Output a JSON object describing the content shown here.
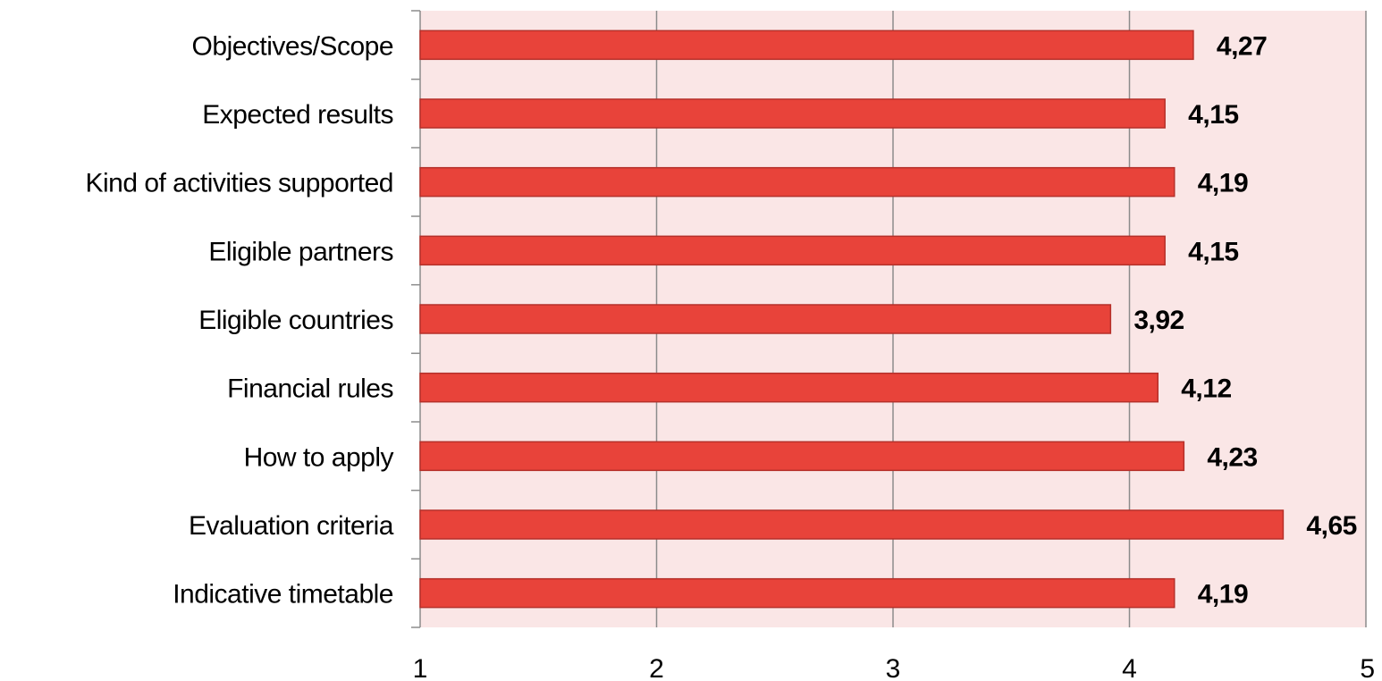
{
  "chart_data": {
    "type": "bar",
    "orientation": "horizontal",
    "categories": [
      "Objectives/Scope",
      "Expected results",
      "Kind of activities supported",
      "Eligible partners",
      "Eligible countries",
      "Financial rules",
      "How to apply",
      "Evaluation criteria",
      "Indicative timetable"
    ],
    "values": [
      4.27,
      4.15,
      4.19,
      4.15,
      3.92,
      4.12,
      4.23,
      4.65,
      4.19
    ],
    "data_labels": [
      "4,27",
      "4,15",
      "4,19",
      "4,15",
      "3,92",
      "4,12",
      "4,23",
      "4,65",
      "4,19"
    ],
    "x_ticks": [
      "1",
      "2",
      "3",
      "4",
      "5"
    ],
    "xlim": [
      1,
      5
    ],
    "title": "",
    "xlabel": "",
    "ylabel": "",
    "grid": "vertical",
    "legend": "none",
    "colors": {
      "bar_fill": "#e8433a",
      "bar_stroke": "#b5302a",
      "plot_background": "#fae6e6",
      "gridline": "#8c8c8c",
      "axis": "#8c8c8c"
    }
  }
}
